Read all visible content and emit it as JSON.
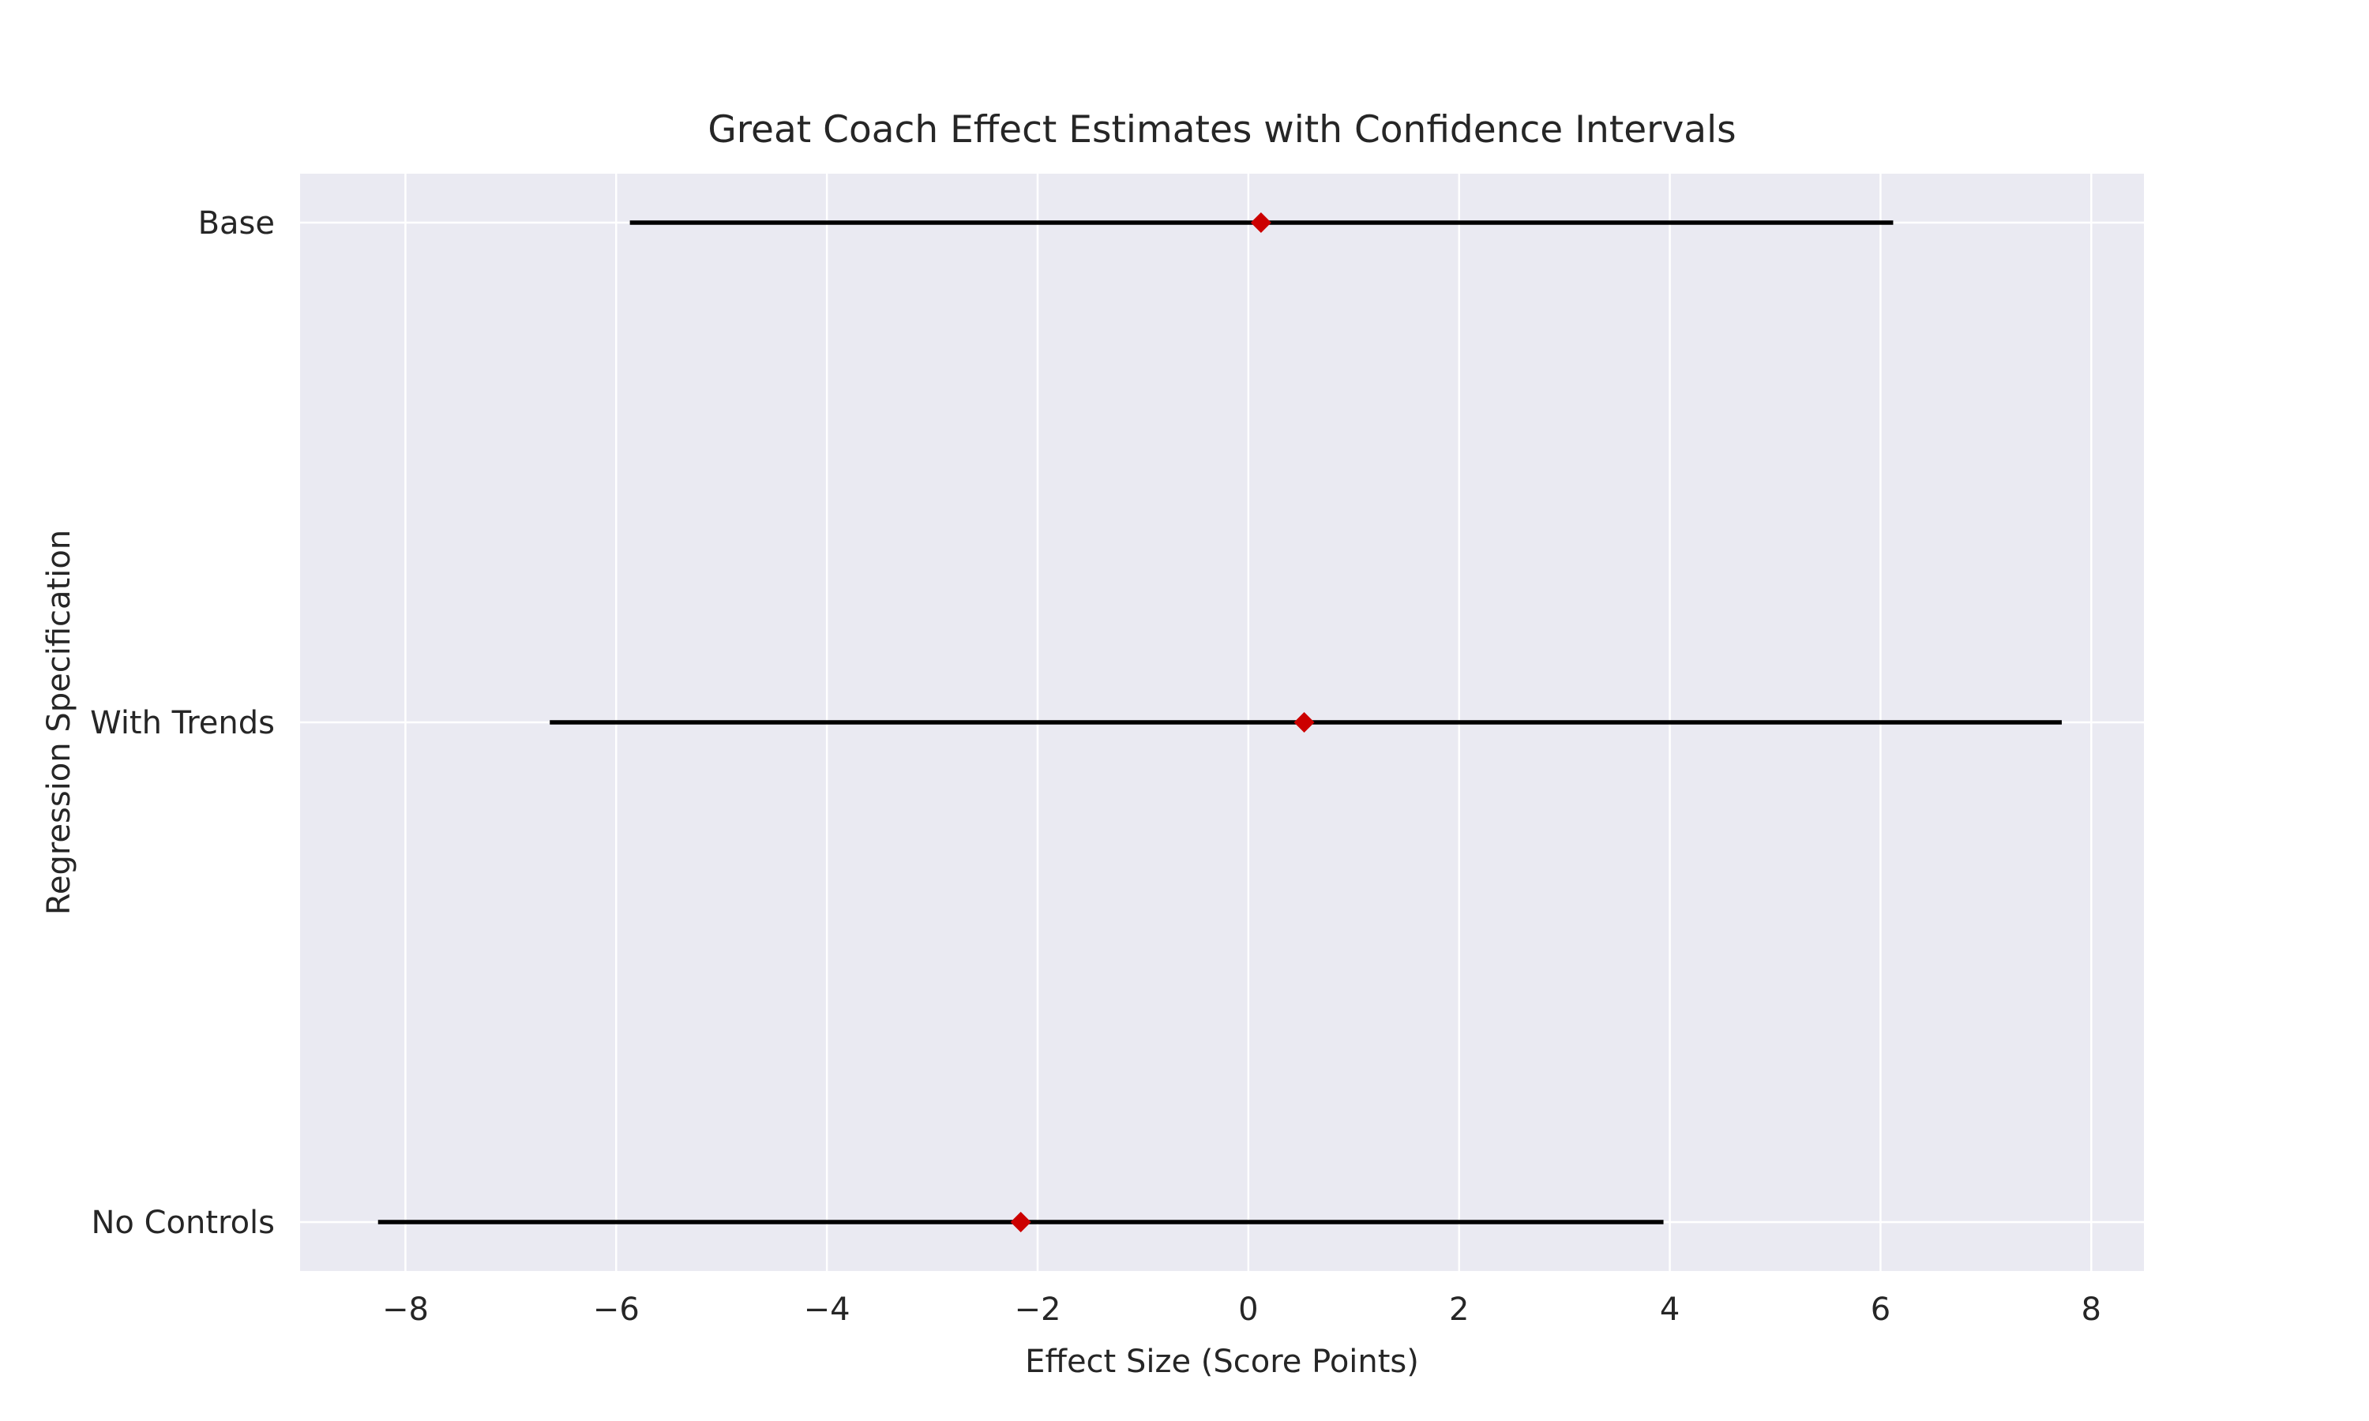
{
  "chart_data": {
    "type": "errorbar",
    "title": "Great Coach Effect Estimates with Confidence Intervals",
    "xlabel": "Effect Size (Score Points)",
    "ylabel": "Regression Specification",
    "xlim": [
      -9,
      8.5
    ],
    "xticks": [
      -8,
      -6,
      -4,
      -2,
      0,
      2,
      4,
      6,
      8
    ],
    "xtick_labels": [
      "−8",
      "−6",
      "−4",
      "−2",
      "0",
      "2",
      "4",
      "6",
      "8"
    ],
    "grid": true,
    "categories": [
      "Base",
      "With Trends",
      "No Controls"
    ],
    "estimates": [
      0.12,
      0.53,
      -2.16
    ],
    "ci_lower": [
      -5.87,
      -6.63,
      -8.26
    ],
    "ci_upper": [
      6.12,
      7.72,
      3.94
    ],
    "colors": {
      "plot_background": "#EAEAF2",
      "grid": "#FFFFFF",
      "interval": "#000000",
      "marker": "#CC0000",
      "text": "#262626"
    }
  }
}
